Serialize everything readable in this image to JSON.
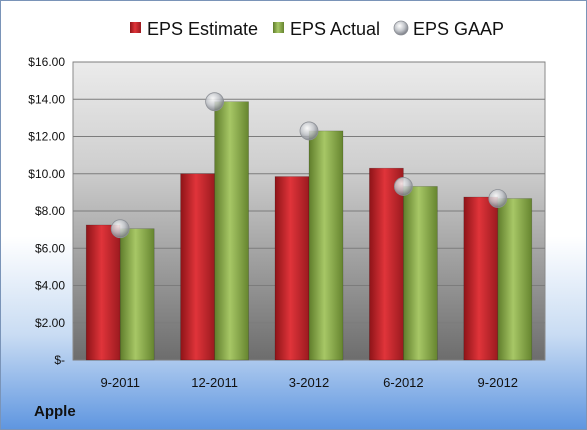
{
  "company": "Apple",
  "chart_data": {
    "type": "bar",
    "categories": [
      "9-2011",
      "12-2011",
      "3-2012",
      "6-2012",
      "9-2012"
    ],
    "series": [
      {
        "name": "EPS Estimate",
        "kind": "bar",
        "color": "#c0272d",
        "values": [
          7.25,
          10.0,
          9.85,
          10.3,
          8.75
        ]
      },
      {
        "name": "EPS Actual",
        "kind": "bar",
        "color": "#8aab4e",
        "values": [
          7.05,
          13.87,
          12.3,
          9.32,
          8.67
        ]
      },
      {
        "name": "EPS GAAP",
        "kind": "marker",
        "color": "#b8bcc4",
        "values": [
          7.05,
          13.87,
          12.3,
          9.32,
          8.67
        ]
      }
    ],
    "y_ticks": [
      "$-",
      "$2.00",
      "$4.00",
      "$6.00",
      "$8.00",
      "$10.00",
      "$12.00",
      "$14.00",
      "$16.00"
    ],
    "ylim": [
      0,
      16
    ],
    "y_step": 2,
    "grid": true,
    "legend_position": "top"
  }
}
